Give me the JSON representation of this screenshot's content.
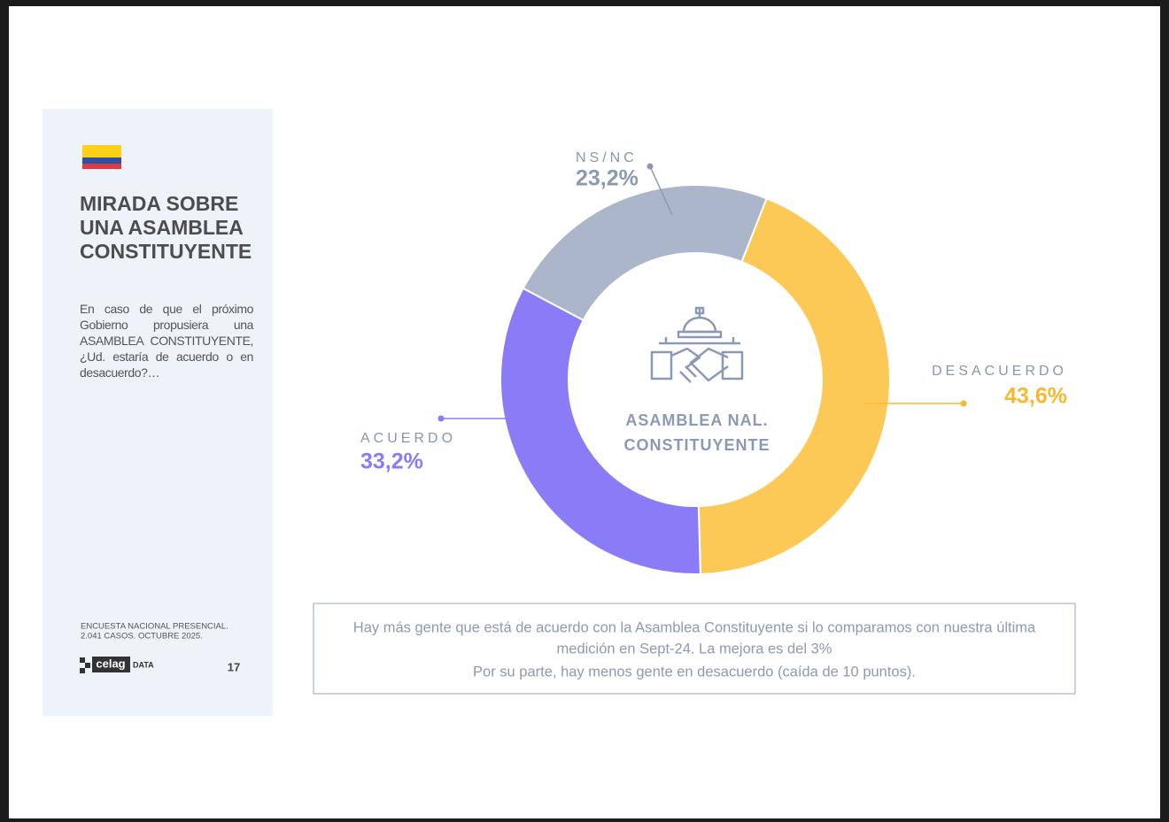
{
  "sidebar": {
    "title_lines": [
      "MIRADA SOBRE",
      "UNA ASAMBLEA",
      "CONSTITUYENTE"
    ],
    "question": "En caso de que el próximo Gobierno propusiera una ASAMBLEA CONSTITUYENTE, ¿Ud. estaría de acuerdo o en desacuerdo?…",
    "source_lines": [
      "ENCUESTA NACIONAL PRESENCIAL.",
      "2.041 CASOS. OCTUBRE 2025."
    ],
    "logo": "celag",
    "logo_suffix": "DATA",
    "page_number": "17"
  },
  "chart_data": {
    "type": "pie",
    "donut": true,
    "categories": [
      "DESACUERDO",
      "ACUERDO",
      "NS/NC"
    ],
    "values": [
      43.6,
      33.2,
      23.2
    ],
    "value_labels": [
      "43,6%",
      "33,2%",
      "23,2%"
    ],
    "colors": [
      "#fcc957",
      "#8a7cf7",
      "#abb6ca"
    ],
    "label_colors": [
      "#f6b92f",
      "#8a7cf7",
      "#8a9ab5"
    ],
    "center_label": [
      "ASAMBLEA NAL.",
      "CONSTITUYENTE"
    ]
  },
  "note": {
    "lines": [
      "Hay más gente que está de acuerdo con la Asamblea Constituyente si lo comparamos con nuestra última",
      "medición en Sept-24. La mejora es del 3%",
      "Por su parte, hay menos gente en desacuerdo (caída de 10 puntos)."
    ]
  }
}
